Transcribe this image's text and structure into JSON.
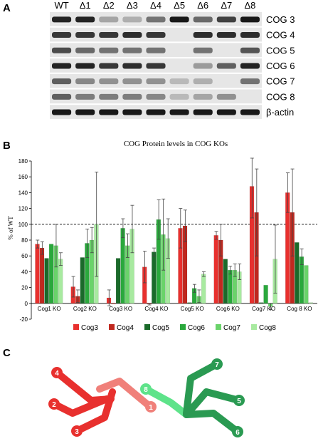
{
  "panels": {
    "a": "A",
    "b": "B",
    "c": "C"
  },
  "blot": {
    "lanes": [
      "WT",
      "Δ1",
      "Δ2",
      "Δ3",
      "Δ4",
      "Δ5",
      "Δ6",
      "Δ7",
      "Δ8"
    ],
    "rows": [
      {
        "label": "COG 3",
        "levels": [
          0.9,
          0.9,
          0.25,
          0.2,
          0.5,
          0.95,
          0.55,
          0.75,
          0.95
        ]
      },
      {
        "label": "COG 4",
        "levels": [
          0.8,
          0.8,
          0.8,
          0.85,
          0.8,
          0.0,
          0.85,
          0.85,
          0.85
        ]
      },
      {
        "label": "COG 5",
        "levels": [
          0.7,
          0.55,
          0.5,
          0.5,
          0.5,
          0.0,
          0.5,
          0.0,
          0.65
        ]
      },
      {
        "label": "COG 6",
        "levels": [
          0.9,
          0.9,
          0.8,
          0.85,
          0.8,
          0.0,
          0.3,
          0.6,
          0.9
        ]
      },
      {
        "label": "COG 7",
        "levels": [
          0.6,
          0.4,
          0.35,
          0.35,
          0.35,
          0.15,
          0.2,
          0.0,
          0.5
        ]
      },
      {
        "label": "COG 8",
        "levels": [
          0.6,
          0.45,
          0.45,
          0.45,
          0.4,
          0.15,
          0.25,
          0.35,
          0.0
        ]
      },
      {
        "label": "β-actin",
        "levels": [
          0.95,
          0.95,
          0.95,
          0.95,
          0.95,
          0.95,
          0.95,
          0.95,
          0.95
        ]
      }
    ]
  },
  "chart_data": {
    "type": "bar",
    "title": "COG  Protein levels in COG KOs",
    "ylabel": "% of WT",
    "ylim": [
      -20,
      180
    ],
    "yticks": [
      -20,
      0,
      20,
      40,
      60,
      80,
      100,
      120,
      140,
      160,
      180
    ],
    "reference_line": 100,
    "categories": [
      "Cog1 KO",
      "Cog2 KO",
      "Cog3 KO",
      "Cog4 KO",
      "Cog5 KO",
      "Cog6 KO",
      "Cog7 KO",
      "Cog 8 KO"
    ],
    "series": [
      {
        "name": "Cog3",
        "color": "#e8302e",
        "values": [
          75,
          21,
          7,
          46,
          95,
          86,
          148,
          140
        ],
        "errors": [
          5,
          13,
          10,
          20,
          25,
          5,
          40,
          25
        ]
      },
      {
        "name": "Cog4",
        "color": "#c0281f",
        "values": [
          70,
          9,
          0,
          -1,
          98,
          80,
          115,
          115
        ],
        "errors": [
          8,
          8,
          0,
          1,
          20,
          20,
          55,
          55
        ]
      },
      {
        "name": "Cog5",
        "color": "#1a6a2a",
        "values": [
          57,
          58,
          57,
          65,
          1,
          56,
          1,
          77
        ],
        "errors": [
          0,
          0,
          0,
          5,
          0,
          0,
          0,
          0
        ]
      },
      {
        "name": "Cog6",
        "color": "#2aa83c",
        "values": [
          75,
          76,
          95,
          106,
          19,
          42,
          23,
          59
        ],
        "errors": [
          0,
          18,
          12,
          25,
          5,
          5,
          0,
          10
        ]
      },
      {
        "name": "Cog7",
        "color": "#6ad36a",
        "values": [
          73,
          80,
          73,
          87,
          9,
          42,
          -4,
          48
        ],
        "errors": [
          27,
          16,
          15,
          45,
          8,
          8,
          4,
          0
        ]
      },
      {
        "name": "Cog8",
        "color": "#a8eaa0",
        "values": [
          56,
          100,
          94,
          82,
          37,
          40,
          56,
          1
        ],
        "errors": [
          8,
          66,
          30,
          25,
          3,
          10,
          43,
          0
        ]
      }
    ],
    "legend_position": "bottom"
  },
  "diagram": {
    "lobe_a_labels": [
      "4",
      "2",
      "3"
    ],
    "lobe_a_color": "#e8302e",
    "bridge_labels": [
      "8",
      "1"
    ],
    "lobe_b_labels": [
      "7",
      "5",
      "6"
    ],
    "lobe_b_color": "#2a9a52"
  }
}
